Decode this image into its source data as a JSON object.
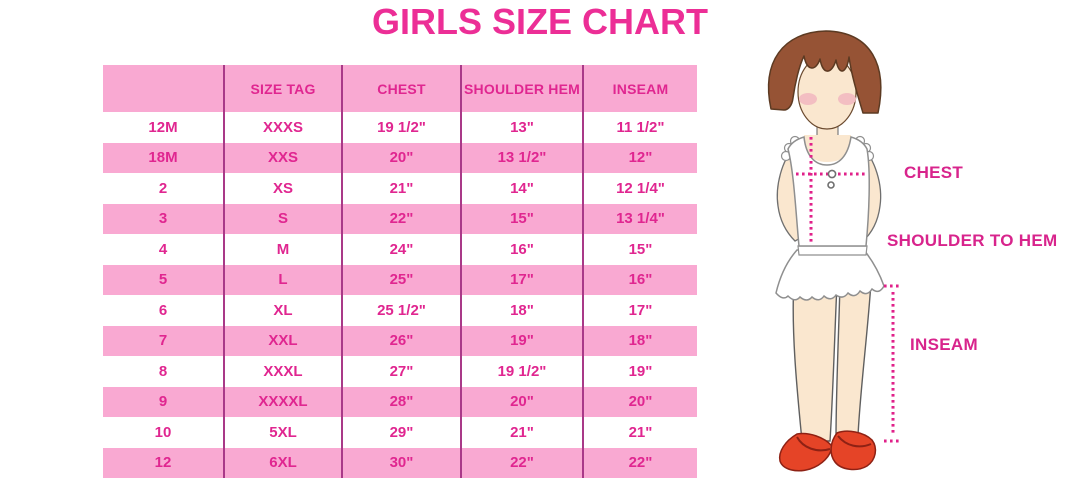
{
  "chart_data": {
    "type": "table",
    "title": "GIRLS SIZE CHART",
    "columns": [
      "",
      "SIZE TAG",
      "CHEST",
      "SHOULDER HEM",
      "INSEAM"
    ],
    "rows": [
      [
        "12M",
        "XXXS",
        "19 1/2\"",
        "13\"",
        "11 1/2\""
      ],
      [
        "18M",
        "XXS",
        "20\"",
        "13 1/2\"",
        "12\""
      ],
      [
        "2",
        "XS",
        "21\"",
        "14\"",
        "12 1/4\""
      ],
      [
        "3",
        "S",
        "22\"",
        "15\"",
        "13 1/4\""
      ],
      [
        "4",
        "M",
        "24\"",
        "16\"",
        "15\""
      ],
      [
        "5",
        "L",
        "25\"",
        "17\"",
        "16\""
      ],
      [
        "6",
        "XL",
        "25 1/2\"",
        "18\"",
        "17\""
      ],
      [
        "7",
        "XXL",
        "26\"",
        "19\"",
        "18\""
      ],
      [
        "8",
        "XXXL",
        "27\"",
        "19 1/2\"",
        "19\""
      ],
      [
        "9",
        "XXXXL",
        "28\"",
        "20\"",
        "20\""
      ],
      [
        "10",
        "5XL",
        "29\"",
        "21\"",
        "21\""
      ],
      [
        "12",
        "6XL",
        "30\"",
        "22\"",
        "22\""
      ]
    ],
    "layout_hints": {
      "row_striping": [
        "white",
        "pink"
      ],
      "header_background": "pink",
      "gridlines": "vertical-only"
    }
  },
  "figure": {
    "description_labels": {
      "chest": "CHEST",
      "shoulder_to_hem": "SHOULDER TO HEM",
      "inseam": "INSEAM"
    }
  },
  "colors": {
    "title_text": "#EC2E96",
    "table_text": "#E02690",
    "row_pink": "#F9A9D2",
    "column_divider": "#A93988",
    "measure_line": "#E0218A",
    "label_text": "#D8248C",
    "hair_brown": "#965335",
    "skin": "#FAE7CF",
    "blush": "#F3BEC2",
    "shoe_red": "#E54427",
    "garment_white": "#FFFFFF"
  }
}
